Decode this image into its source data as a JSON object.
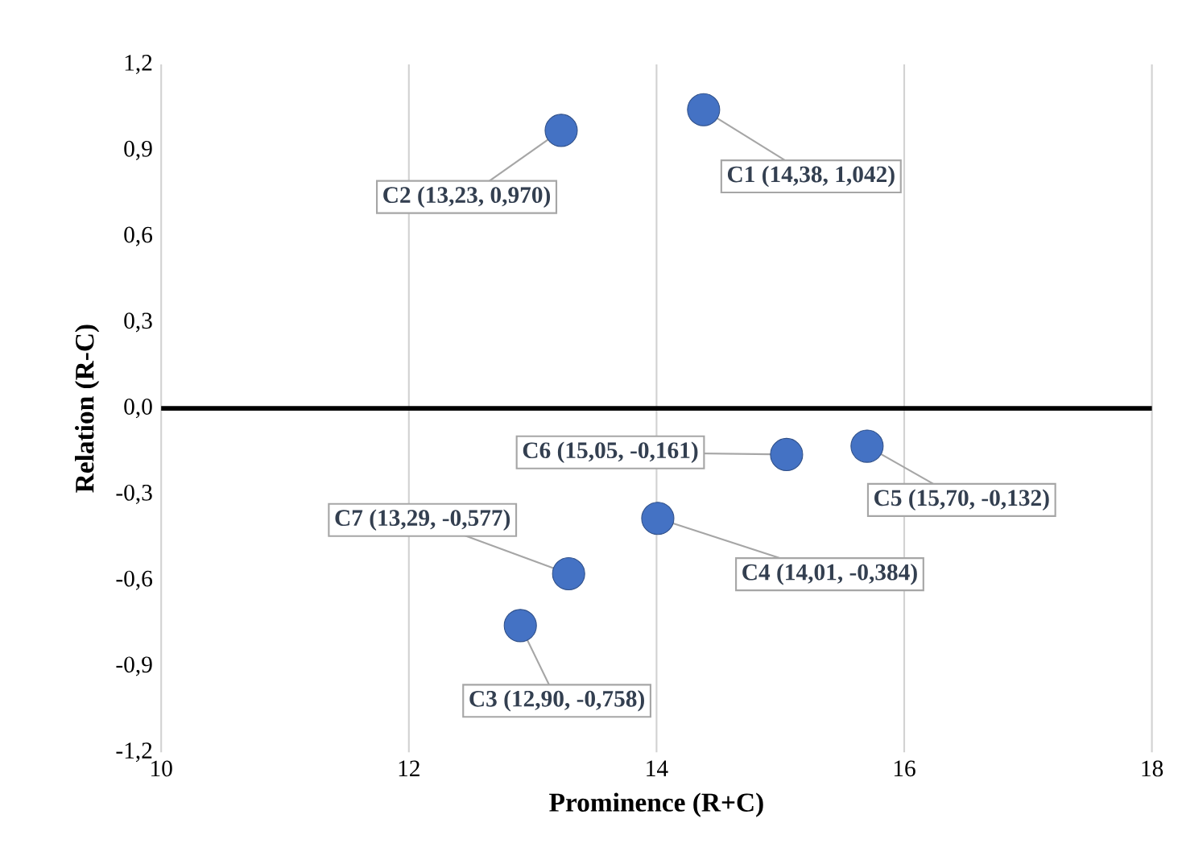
{
  "chart_data": {
    "type": "scatter",
    "xlabel": "Prominence (R+C)",
    "ylabel": "Relation (R-C)",
    "x": [
      14.38,
      13.23,
      12.9,
      14.01,
      15.7,
      15.05,
      13.29
    ],
    "values": [
      1.042,
      0.97,
      -0.758,
      -0.384,
      -0.132,
      -0.161,
      -0.577
    ],
    "color": "#4472c4",
    "grid": "x",
    "xlim": [
      10,
      18
    ],
    "xticks": [
      10,
      12,
      14,
      16,
      18
    ],
    "ylim": [
      -1.2,
      1.2
    ],
    "yticks": [
      {
        "value": -1.2,
        "label": "-1,2"
      },
      {
        "value": -0.9,
        "label": "-0,9"
      },
      {
        "value": -0.6,
        "label": "-0,6"
      },
      {
        "value": -0.3,
        "label": "-0,3"
      },
      {
        "value": 0,
        "label": "0,0"
      },
      {
        "value": 0.3,
        "label": "0,3"
      },
      {
        "value": 0.6,
        "label": "0,6"
      },
      {
        "value": 0.9,
        "label": "0,9"
      },
      {
        "value": 1.2,
        "label": "1,2"
      }
    ],
    "ref_lines": [
      {
        "axis": "y",
        "value": 0,
        "color": "#000000"
      }
    ],
    "annotations": [
      {
        "text": "C1 (14,38, 1,042)",
        "x": 14.38,
        "y": 1.042
      },
      {
        "text": "C2 (13,23, 0,970)",
        "x": 13.23,
        "y": 0.97
      },
      {
        "text": "C3 (12,90, -0,758)",
        "x": 12.9,
        "y": -0.758
      },
      {
        "text": "C4 (14,01, -0,384)",
        "x": 14.01,
        "y": -0.384
      },
      {
        "text": "C5 (15,70, -0,132)",
        "x": 15.7,
        "y": -0.132
      },
      {
        "text": "C6 (15,05, -0,161)",
        "x": 15.05,
        "y": -0.161
      },
      {
        "text": "C7 (13,29, -0,577)",
        "x": 13.29,
        "y": -0.577
      }
    ]
  }
}
